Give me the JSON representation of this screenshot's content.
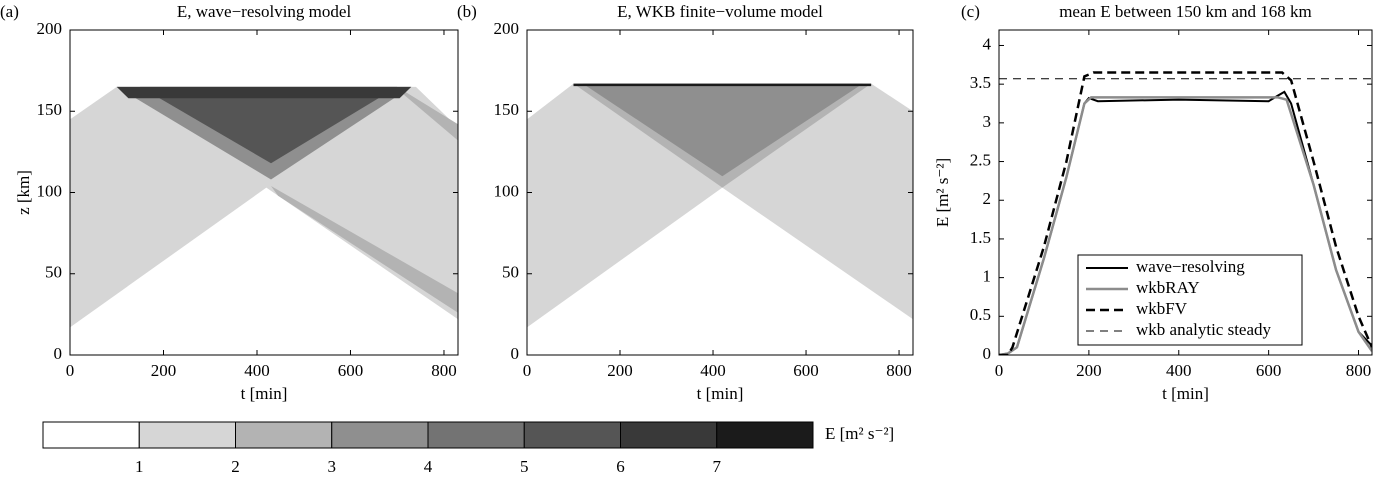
{
  "chart_data": [
    {
      "type": "contourf",
      "panel": "(a)",
      "title": "E, wave−resolving model",
      "xlabel": "t [min]",
      "ylabel": "z [km]",
      "xlim": [
        0,
        830
      ],
      "xticks": [
        0,
        200,
        400,
        600,
        800
      ],
      "ylim": [
        0,
        200
      ],
      "yticks": [
        0,
        50,
        100,
        150,
        200
      ],
      "regions": [
        {
          "level": 1.5,
          "t": [
            0,
            0,
            100,
            740,
            830,
            830,
            420
          ],
          "z": [
            17,
            145,
            165,
            165,
            140,
            22,
            103
          ]
        },
        {
          "level": 2.5,
          "t": [
            430,
            830,
            830,
            445
          ],
          "z": [
            104,
            38,
            26,
            98
          ]
        },
        {
          "level": 2.5,
          "t": [
            700,
            830,
            830,
            715
          ],
          "z": [
            165,
            142,
            132,
            160
          ]
        },
        {
          "level": 3.5,
          "t": [
            100,
            730,
            430
          ],
          "z": [
            165,
            165,
            108
          ]
        },
        {
          "level": 5.5,
          "t": [
            150,
            700,
            430
          ],
          "z": [
            165,
            165,
            118
          ]
        },
        {
          "level": 6.5,
          "t": [
            100,
            730,
            705,
            125
          ],
          "z": [
            165,
            165,
            158,
            158
          ]
        }
      ]
    },
    {
      "type": "contourf",
      "panel": "(b)",
      "title": "E, WKB finite−volume model",
      "xlabel": "t [min]",
      "xlim": [
        0,
        830
      ],
      "xticks": [
        0,
        200,
        400,
        600,
        800
      ],
      "ylim": [
        0,
        200
      ],
      "yticks": [
        0,
        50,
        100,
        150,
        200
      ],
      "regions": [
        {
          "level": 1.5,
          "t": [
            0,
            0,
            100,
            740,
            830,
            830,
            420
          ],
          "z": [
            17,
            145,
            167,
            167,
            150,
            22,
            103
          ]
        },
        {
          "level": 2.5,
          "t": [
            100,
            740,
            420
          ],
          "z": [
            167,
            167,
            103
          ]
        },
        {
          "level": 3.5,
          "t": [
            120,
            722,
            420
          ],
          "z": [
            167,
            167,
            110
          ]
        },
        {
          "level": 7.5,
          "t": [
            100,
            740,
            740,
            100
          ],
          "z": [
            167,
            167,
            165.5,
            165.5
          ]
        }
      ]
    },
    {
      "type": "line",
      "panel": "(c)",
      "title": "mean E between 150 km and 168 km",
      "xlabel": "t [min]",
      "ylabel": "E [m² s⁻²]",
      "xlim": [
        0,
        830
      ],
      "xticks": [
        0,
        200,
        400,
        600,
        800
      ],
      "ylim": [
        0,
        4.2
      ],
      "yticks": [
        0,
        0.5,
        1,
        1.5,
        2,
        2.5,
        3,
        3.5,
        4
      ],
      "legend": "lower center",
      "series": [
        {
          "name": "wave−resolving",
          "color": "#000000",
          "style": "solid",
          "width": 2,
          "x": [
            0,
            20,
            40,
            100,
            150,
            190,
            200,
            220,
            400,
            600,
            620,
            635,
            650,
            700,
            750,
            800,
            830
          ],
          "values": [
            0,
            0.02,
            0.1,
            1.25,
            2.3,
            3.25,
            3.32,
            3.28,
            3.3,
            3.28,
            3.35,
            3.4,
            3.25,
            2.2,
            1.1,
            0.3,
            0.12
          ]
        },
        {
          "name": "wkbRAY",
          "color": "#8c8c8c",
          "style": "solid",
          "width": 2.5,
          "x": [
            0,
            20,
            40,
            100,
            150,
            190,
            205,
            400,
            620,
            640,
            700,
            750,
            800,
            830
          ],
          "values": [
            0,
            0.02,
            0.1,
            1.25,
            2.3,
            3.25,
            3.33,
            3.33,
            3.33,
            3.3,
            2.2,
            1.1,
            0.3,
            0.05
          ]
        },
        {
          "name": "wkbFV",
          "color": "#000000",
          "style": "dashed",
          "width": 2.5,
          "x": [
            0,
            20,
            30,
            100,
            150,
            190,
            210,
            630,
            650,
            700,
            750,
            800,
            830
          ],
          "values": [
            0,
            0,
            0.1,
            1.4,
            2.5,
            3.6,
            3.65,
            3.65,
            3.55,
            2.5,
            1.4,
            0.5,
            0.1
          ]
        },
        {
          "name": "wkb analytic steady",
          "color": "#000000",
          "style": "dashed",
          "width": 1,
          "x": [
            0,
            830
          ],
          "values": [
            3.57,
            3.57
          ]
        }
      ]
    }
  ],
  "colorbar": {
    "bounds": [
      0,
      1,
      2,
      3,
      4,
      5,
      6,
      7,
      8
    ],
    "colors": [
      "#ffffff",
      "#d6d6d6",
      "#b3b3b3",
      "#8f8f8f",
      "#737373",
      "#555555",
      "#393939",
      "#1b1b1b"
    ],
    "ticks": [
      1,
      2,
      3,
      4,
      5,
      6,
      7
    ],
    "label": "E [m² s⁻²]"
  }
}
